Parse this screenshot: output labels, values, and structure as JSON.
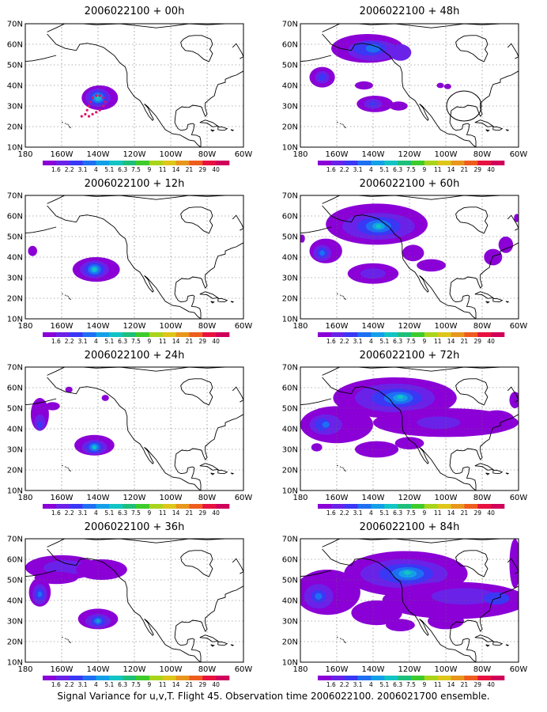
{
  "figure": {
    "caption": "Signal Variance for u,v,T. Flight 45. Observation time 2006022100. 2006021700 ensemble."
  },
  "axes": {
    "lat_labels": [
      "70N",
      "60N",
      "50N",
      "40N",
      "30N",
      "20N",
      "10N"
    ],
    "lon_labels": [
      "180",
      "160W",
      "140W",
      "120W",
      "100W",
      "80W",
      "60W"
    ]
  },
  "colorbar": {
    "levels": [
      "1.6",
      "2.2",
      "3.1",
      "4",
      "5.1",
      "6.3",
      "7.5",
      "9",
      "11",
      "14",
      "21",
      "29",
      "40"
    ],
    "colors": [
      "#8a00d6",
      "#6a22e8",
      "#3a37f5",
      "#1e6ff2",
      "#14a0e8",
      "#12c4c4",
      "#1dbf7a",
      "#3ecb2c",
      "#a9d41c",
      "#dec61a",
      "#e8961c",
      "#ee5c1e",
      "#e81240",
      "#d0005a"
    ]
  },
  "chart_data": [
    {
      "type": "heatmap",
      "title": "2006022100 + 00h",
      "lead_hours": 0,
      "xlim": [
        "180",
        "60W"
      ],
      "ylim": [
        "10N",
        "70N"
      ],
      "blobs": [
        {
          "lon": -140,
          "lat": 34,
          "max_level": "7.5"
        }
      ],
      "observation_track": [
        [
          -149,
          25
        ],
        [
          -147,
          26
        ],
        [
          -146,
          28
        ],
        [
          -145,
          30
        ],
        [
          -144,
          32
        ],
        [
          -143,
          34
        ],
        [
          -141,
          35
        ],
        [
          -139,
          35
        ],
        [
          -137,
          34
        ],
        [
          -136,
          32
        ],
        [
          -137,
          30
        ],
        [
          -139,
          28
        ],
        [
          -141,
          27
        ],
        [
          -143,
          26
        ],
        [
          -145,
          25
        ]
      ]
    },
    {
      "type": "heatmap",
      "title": "2006022100 + 48h",
      "lead_hours": 48,
      "xlim": [
        "180",
        "60W"
      ],
      "ylim": [
        "10N",
        "70N"
      ],
      "blobs": [
        {
          "lon": -142,
          "lat": 58,
          "max_level": "5.1"
        },
        {
          "lon": -168,
          "lat": 44,
          "max_level": "5.1"
        },
        {
          "lon": -140,
          "lat": 31,
          "max_level": "4"
        }
      ]
    },
    {
      "type": "heatmap",
      "title": "2006022100 + 12h",
      "lead_hours": 12,
      "xlim": [
        "180",
        "60W"
      ],
      "ylim": [
        "10N",
        "70N"
      ],
      "blobs": [
        {
          "lon": -142,
          "lat": 34,
          "max_level": "7.5"
        },
        {
          "lon": -176,
          "lat": 43,
          "max_level": "1.6"
        }
      ]
    },
    {
      "type": "heatmap",
      "title": "2006022100 + 60h",
      "lead_hours": 60,
      "xlim": [
        "180",
        "60W"
      ],
      "ylim": [
        "10N",
        "70N"
      ],
      "blobs": [
        {
          "lon": -137,
          "lat": 55,
          "max_level": "7.5"
        },
        {
          "lon": -168,
          "lat": 42,
          "max_level": "5.1"
        },
        {
          "lon": -140,
          "lat": 32,
          "max_level": "4"
        }
      ]
    },
    {
      "type": "heatmap",
      "title": "2006022100 + 24h",
      "lead_hours": 24,
      "xlim": [
        "180",
        "60W"
      ],
      "ylim": [
        "10N",
        "70N"
      ],
      "blobs": [
        {
          "lon": -142,
          "lat": 31,
          "max_level": "6.3"
        },
        {
          "lon": -172,
          "lat": 44,
          "max_level": "4"
        },
        {
          "lon": -156,
          "lat": 59,
          "max_level": "1.6"
        }
      ]
    },
    {
      "type": "heatmap",
      "title": "2006022100 + 72h",
      "lead_hours": 72,
      "xlim": [
        "180",
        "60W"
      ],
      "ylim": [
        "10N",
        "70N"
      ],
      "blobs": [
        {
          "lon": -128,
          "lat": 55,
          "max_level": "7.5"
        },
        {
          "lon": -165,
          "lat": 43,
          "max_level": "5.1"
        },
        {
          "lon": -100,
          "lat": 43,
          "max_level": "4"
        }
      ]
    },
    {
      "type": "heatmap",
      "title": "2006022100 + 36h",
      "lead_hours": 36,
      "xlim": [
        "180",
        "60W"
      ],
      "ylim": [
        "10N",
        "70N"
      ],
      "blobs": [
        {
          "lon": -160,
          "lat": 55,
          "max_level": "4"
        },
        {
          "lon": -172,
          "lat": 43,
          "max_level": "5.1"
        },
        {
          "lon": -140,
          "lat": 30,
          "max_level": "5.1"
        }
      ]
    },
    {
      "type": "heatmap",
      "title": "2006022100 + 84h",
      "lead_hours": 84,
      "xlim": [
        "180",
        "60W"
      ],
      "ylim": [
        "10N",
        "70N"
      ],
      "blobs": [
        {
          "lon": -122,
          "lat": 53,
          "max_level": "7.5"
        },
        {
          "lon": -170,
          "lat": 42,
          "max_level": "5.1"
        },
        {
          "lon": -95,
          "lat": 40,
          "max_level": "4"
        }
      ]
    }
  ]
}
